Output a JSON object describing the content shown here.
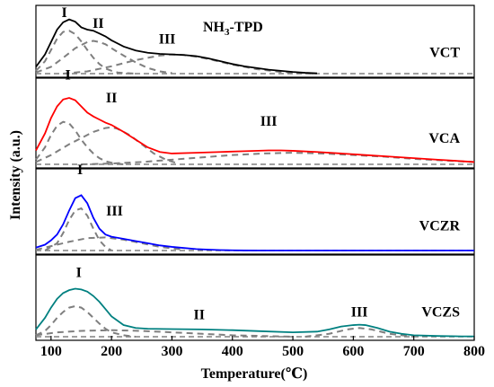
{
  "chart_data": {
    "type": "line",
    "title": "NH3-TPD",
    "title_sub": "3",
    "xlabel": "Temperature",
    "xlabel_unit": "(℃)",
    "ylabel": "Intensity (a.u.)",
    "xlim": [
      75,
      800
    ],
    "x_ticks": [
      100,
      200,
      300,
      400,
      500,
      600,
      700,
      800
    ],
    "y_ticks_shown": false,
    "grid": false,
    "panels": [
      {
        "name": "VCT",
        "color": "#000000",
        "ylim": [
          0,
          1.05
        ],
        "curve": {
          "x": [
            75,
            90,
            100,
            110,
            120,
            130,
            140,
            150,
            160,
            170,
            180,
            190,
            200,
            220,
            240,
            260,
            280,
            300,
            320,
            340,
            360,
            380,
            400,
            420,
            440,
            460,
            480,
            500,
            520,
            540
          ],
          "y": [
            0.12,
            0.34,
            0.56,
            0.78,
            0.91,
            0.96,
            0.92,
            0.82,
            0.78,
            0.76,
            0.71,
            0.66,
            0.59,
            0.48,
            0.41,
            0.37,
            0.35,
            0.34,
            0.33,
            0.31,
            0.27,
            0.22,
            0.17,
            0.13,
            0.1,
            0.07,
            0.05,
            0.03,
            0.015,
            0.005
          ]
        },
        "components": [
          {
            "label": "I",
            "x": [
              75,
              90,
              100,
              110,
              120,
              130,
              140,
              150,
              160,
              170,
              180,
              190,
              200,
              210,
              220,
              240
            ],
            "y": [
              0.05,
              0.22,
              0.42,
              0.62,
              0.74,
              0.76,
              0.7,
              0.57,
              0.42,
              0.28,
              0.17,
              0.09,
              0.05,
              0.02,
              0.01,
              0.0
            ]
          },
          {
            "label": "II",
            "x": [
              75,
              100,
              120,
              140,
              160,
              170,
              180,
              190,
              200,
              220,
              240,
              260,
              280,
              300
            ],
            "y": [
              0.02,
              0.12,
              0.28,
              0.45,
              0.56,
              0.58,
              0.56,
              0.52,
              0.45,
              0.32,
              0.2,
              0.1,
              0.04,
              0.01
            ]
          },
          {
            "label": "III",
            "x": [
              120,
              160,
              200,
              240,
              280,
              300,
              320,
              340,
              360,
              380,
              400,
              440,
              480,
              520,
              540
            ],
            "y": [
              0.0,
              0.04,
              0.13,
              0.24,
              0.32,
              0.34,
              0.33,
              0.3,
              0.26,
              0.21,
              0.16,
              0.08,
              0.03,
              0.01,
              0.0
            ]
          }
        ],
        "peak_labels": [
          {
            "text": "I",
            "x": 122,
            "y": 1.0
          },
          {
            "text": "II",
            "x": 178,
            "y": 0.81
          },
          {
            "text": "III",
            "x": 292,
            "y": 0.53
          }
        ]
      },
      {
        "name": "VCA",
        "color": "#ff0000",
        "ylim": [
          0,
          1.0
        ],
        "curve": {
          "x": [
            75,
            90,
            100,
            110,
            120,
            130,
            140,
            150,
            160,
            170,
            180,
            190,
            200,
            220,
            240,
            260,
            280,
            300,
            340,
            380,
            420,
            460,
            480,
            500,
            540,
            580,
            620,
            660,
            700,
            740,
            780,
            800
          ],
          "y": [
            0.18,
            0.4,
            0.6,
            0.75,
            0.84,
            0.86,
            0.83,
            0.75,
            0.67,
            0.62,
            0.58,
            0.54,
            0.51,
            0.42,
            0.32,
            0.22,
            0.16,
            0.14,
            0.15,
            0.16,
            0.17,
            0.18,
            0.18,
            0.175,
            0.16,
            0.14,
            0.12,
            0.1,
            0.08,
            0.06,
            0.04,
            0.03
          ]
        },
        "components": [
          {
            "label": "I",
            "x": [
              75,
              90,
              100,
              110,
              120,
              130,
              140,
              150,
              160,
              170,
              180,
              190,
              200,
              220
            ],
            "y": [
              0.06,
              0.22,
              0.38,
              0.5,
              0.55,
              0.53,
              0.44,
              0.32,
              0.22,
              0.14,
              0.08,
              0.04,
              0.02,
              0.0
            ]
          },
          {
            "label": "II",
            "x": [
              75,
              100,
              130,
              150,
              170,
              190,
              200,
              210,
              230,
              250,
              270,
              290,
              310
            ],
            "y": [
              0.03,
              0.12,
              0.26,
              0.34,
              0.42,
              0.47,
              0.48,
              0.46,
              0.38,
              0.26,
              0.14,
              0.06,
              0.01
            ]
          },
          {
            "label": "III",
            "x": [
              150,
              200,
              250,
              300,
              350,
              400,
              450,
              500,
              550,
              600,
              650,
              700,
              750,
              800
            ],
            "y": [
              0.0,
              0.01,
              0.03,
              0.06,
              0.09,
              0.12,
              0.14,
              0.15,
              0.14,
              0.12,
              0.1,
              0.07,
              0.05,
              0.03
            ]
          }
        ],
        "peak_labels": [
          {
            "text": "I",
            "x": 128,
            "y": 1.1
          },
          {
            "text": "II",
            "x": 200,
            "y": 0.8
          },
          {
            "text": "III",
            "x": 460,
            "y": 0.5
          }
        ]
      },
      {
        "name": "VCZR",
        "color": "#0000ff",
        "ylim": [
          0,
          1.0
        ],
        "curve": {
          "x": [
            75,
            90,
            100,
            110,
            120,
            130,
            140,
            150,
            160,
            170,
            180,
            190,
            200,
            220,
            240,
            260,
            280,
            300,
            320,
            340,
            360,
            380,
            400,
            420,
            440,
            800
          ],
          "y": [
            0.04,
            0.08,
            0.14,
            0.22,
            0.36,
            0.55,
            0.72,
            0.76,
            0.65,
            0.45,
            0.3,
            0.22,
            0.19,
            0.16,
            0.13,
            0.1,
            0.07,
            0.05,
            0.035,
            0.02,
            0.012,
            0.006,
            0.003,
            0.001,
            0.0,
            0.0
          ]
        },
        "components": [
          {
            "label": "I",
            "x": [
              90,
              110,
              120,
              130,
              140,
              150,
              160,
              170,
              180,
              190,
              200
            ],
            "y": [
              0.0,
              0.1,
              0.24,
              0.42,
              0.55,
              0.58,
              0.48,
              0.3,
              0.14,
              0.05,
              0.0
            ]
          },
          {
            "label": "III",
            "x": [
              75,
              100,
              130,
              160,
              190,
              220,
              250,
              280,
              320
            ],
            "y": [
              0.01,
              0.06,
              0.12,
              0.17,
              0.18,
              0.15,
              0.1,
              0.05,
              0.01
            ]
          }
        ],
        "peak_labels": [
          {
            "text": "I",
            "x": 148,
            "y": 1.05
          },
          {
            "text": "III",
            "x": 205,
            "y": 0.48
          }
        ]
      },
      {
        "name": "VCZS",
        "color": "#008080",
        "ylim": [
          0,
          1.0
        ],
        "curve": {
          "x": [
            75,
            90,
            100,
            110,
            120,
            130,
            140,
            150,
            160,
            170,
            180,
            190,
            200,
            220,
            240,
            260,
            300,
            350,
            400,
            450,
            500,
            540,
            560,
            580,
            600,
            610,
            620,
            640,
            660,
            680,
            700,
            740,
            780,
            800
          ],
          "y": [
            0.1,
            0.26,
            0.4,
            0.52,
            0.6,
            0.64,
            0.66,
            0.65,
            0.62,
            0.56,
            0.48,
            0.38,
            0.28,
            0.16,
            0.12,
            0.11,
            0.105,
            0.1,
            0.09,
            0.075,
            0.06,
            0.07,
            0.1,
            0.14,
            0.16,
            0.165,
            0.16,
            0.12,
            0.07,
            0.04,
            0.02,
            0.01,
            0.005,
            0.005
          ]
        },
        "components": [
          {
            "label": "I",
            "x": [
              75,
              90,
              100,
              110,
              120,
              130,
              140,
              150,
              160,
              170,
              180,
              190,
              200,
              220,
              240
            ],
            "y": [
              0.02,
              0.08,
              0.16,
              0.26,
              0.34,
              0.4,
              0.42,
              0.4,
              0.34,
              0.26,
              0.18,
              0.11,
              0.06,
              0.02,
              0.0
            ]
          },
          {
            "label": "II",
            "x": [
              75,
              110,
              150,
              200,
              250,
              300,
              350,
              400,
              450,
              500
            ],
            "y": [
              0.02,
              0.06,
              0.08,
              0.09,
              0.08,
              0.06,
              0.04,
              0.02,
              0.01,
              0.0
            ]
          },
          {
            "label": "III",
            "x": [
              520,
              560,
              590,
              610,
              630,
              660,
              700
            ],
            "y": [
              0.0,
              0.04,
              0.1,
              0.12,
              0.1,
              0.04,
              0.0
            ]
          }
        ],
        "peak_labels": [
          {
            "text": "I",
            "x": 146,
            "y": 0.82
          },
          {
            "text": "II",
            "x": 345,
            "y": 0.24
          },
          {
            "text": "III",
            "x": 610,
            "y": 0.28
          }
        ]
      }
    ]
  }
}
